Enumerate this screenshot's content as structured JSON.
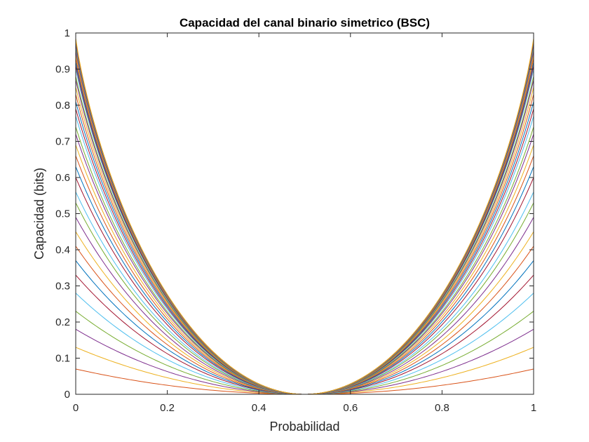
{
  "chart_data": {
    "type": "line",
    "title": "Capacidad del canal binario simetrico (BSC)",
    "xlabel": "Probabilidad",
    "ylabel": "Capacidad (bits)",
    "xlim": [
      0,
      1
    ],
    "ylim": [
      0,
      1
    ],
    "x_ticks": [
      "0",
      "0.2",
      "0.4",
      "0.6",
      "0.8",
      "1"
    ],
    "y_ticks": [
      "0",
      "0.1",
      "0.2",
      "0.3",
      "0.4",
      "0.5",
      "0.6",
      "0.7",
      "0.8",
      "0.9",
      "1"
    ],
    "grid": false,
    "legend": "none",
    "curve_family": "C(p) = 1 - H(p), approximated by many curves with increasing endpoint value",
    "series_endpoint_capacity": [
      0.0,
      0.07,
      0.13,
      0.18,
      0.23,
      0.28,
      0.33,
      0.37,
      0.41,
      0.45,
      0.49,
      0.53,
      0.56,
      0.6,
      0.63,
      0.66,
      0.69,
      0.72,
      0.74,
      0.77,
      0.79,
      0.81,
      0.83,
      0.85,
      0.87,
      0.88,
      0.9,
      0.91,
      0.92,
      0.93,
      0.94,
      0.95,
      0.96,
      0.965,
      0.97,
      0.975,
      0.98,
      0.985
    ],
    "series_colors": [
      "#0072BD",
      "#D95319",
      "#EDB120",
      "#7E2F8E",
      "#77AC30",
      "#4DBEEE",
      "#A2142F"
    ]
  }
}
